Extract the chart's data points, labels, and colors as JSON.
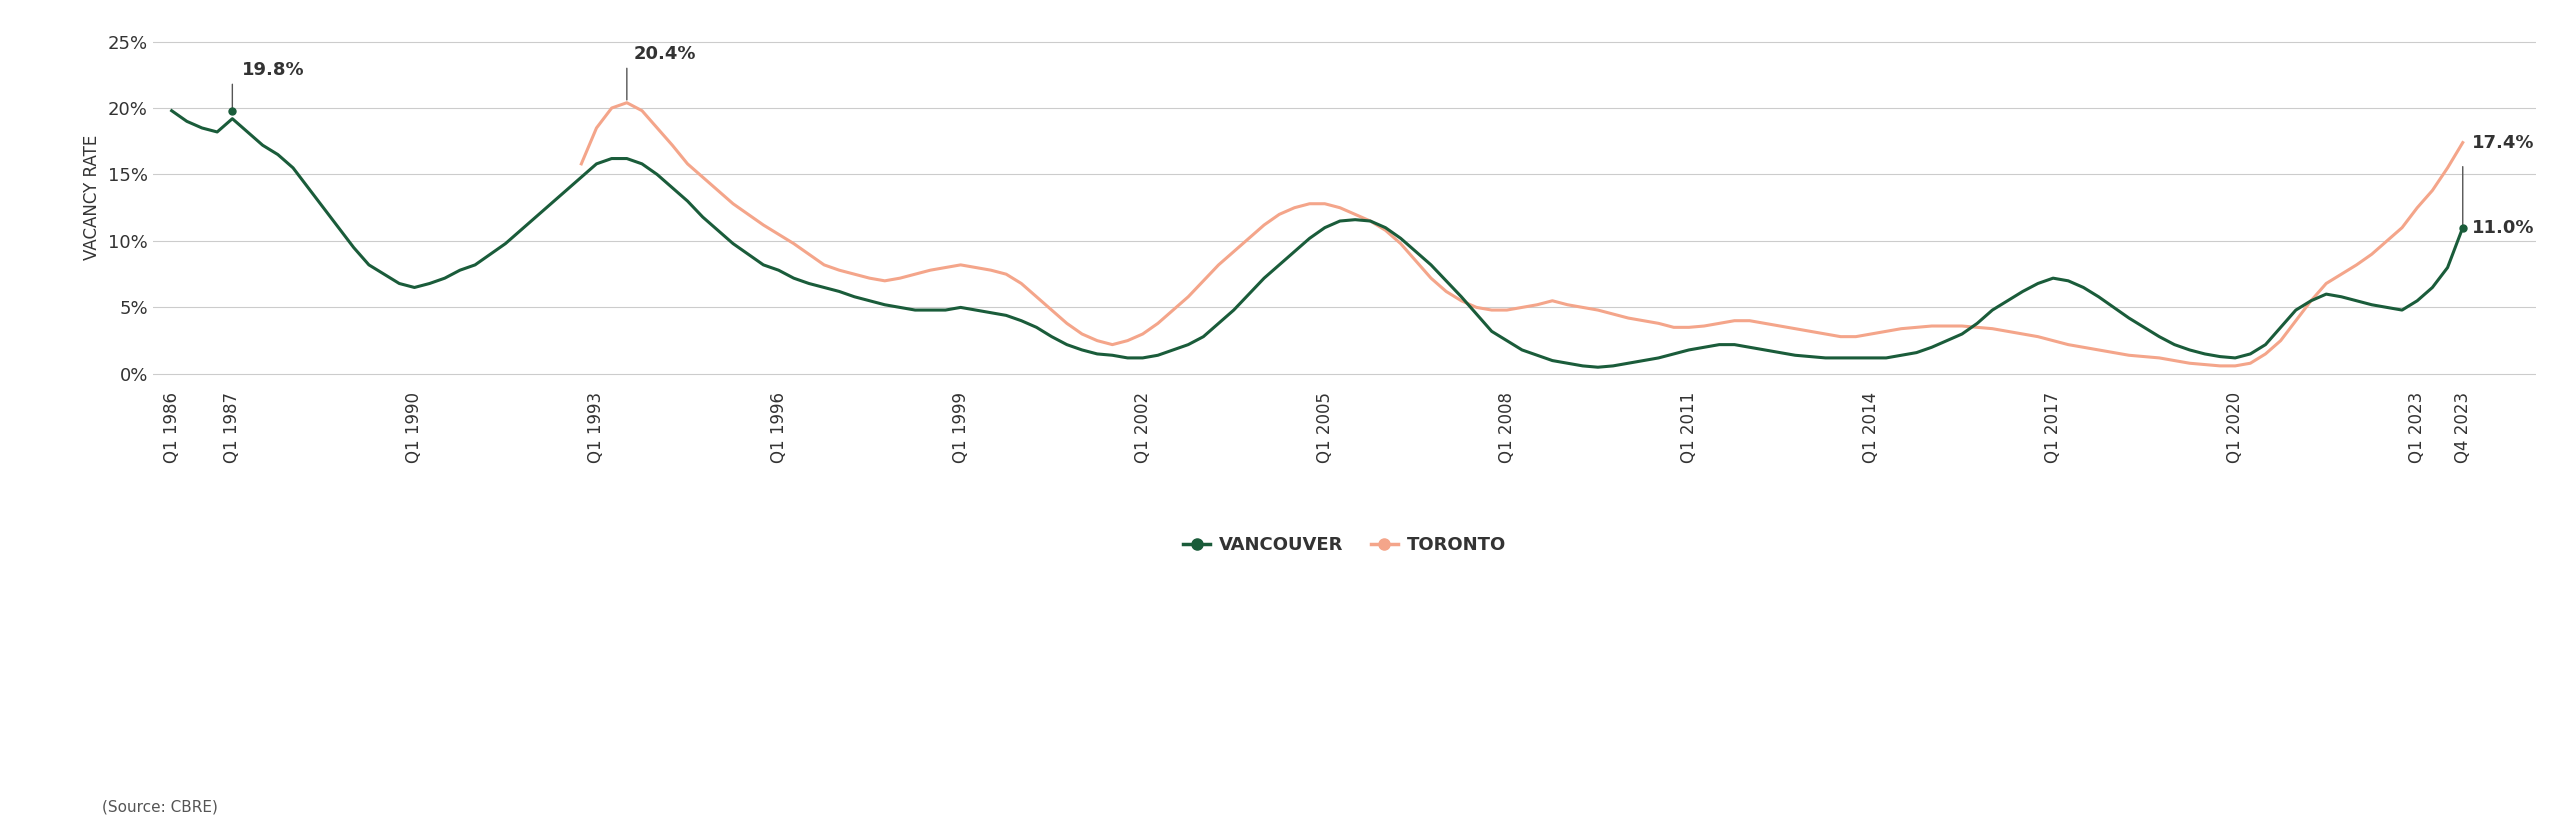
{
  "ylabel": "VACANCY RATE",
  "source": "(Source: CBRE)",
  "vancouver_color": "#1a5c3a",
  "toronto_color": "#f4a58a",
  "background_color": "#ffffff",
  "ylim": [
    -0.005,
    0.27
  ],
  "yticks": [
    0.0,
    0.05,
    0.1,
    0.15,
    0.2,
    0.25
  ],
  "ytick_labels": [
    "0%",
    "5%",
    "10%",
    "15%",
    "20%",
    "25%"
  ],
  "xtick_labels": [
    "Q1 1986",
    "Q1 1987",
    "Q1 1990",
    "Q1 1993",
    "Q1 1996",
    "Q1 1999",
    "Q1 2002",
    "Q1 2005",
    "Q1 2008",
    "Q1 2011",
    "Q1 2014",
    "Q1 2017",
    "Q1 2020",
    "Q1 2023",
    "Q4 2023"
  ],
  "vancouver_data": [
    [
      1986,
      1,
      0.198
    ],
    [
      1986,
      2,
      0.19
    ],
    [
      1986,
      3,
      0.185
    ],
    [
      1986,
      4,
      0.182
    ],
    [
      1987,
      1,
      0.192
    ],
    [
      1987,
      2,
      0.182
    ],
    [
      1987,
      3,
      0.172
    ],
    [
      1987,
      4,
      0.165
    ],
    [
      1988,
      1,
      0.155
    ],
    [
      1988,
      2,
      0.14
    ],
    [
      1988,
      3,
      0.125
    ],
    [
      1988,
      4,
      0.11
    ],
    [
      1989,
      1,
      0.095
    ],
    [
      1989,
      2,
      0.082
    ],
    [
      1989,
      3,
      0.075
    ],
    [
      1989,
      4,
      0.068
    ],
    [
      1990,
      1,
      0.065
    ],
    [
      1990,
      2,
      0.068
    ],
    [
      1990,
      3,
      0.072
    ],
    [
      1990,
      4,
      0.078
    ],
    [
      1991,
      1,
      0.082
    ],
    [
      1991,
      2,
      0.09
    ],
    [
      1991,
      3,
      0.098
    ],
    [
      1991,
      4,
      0.108
    ],
    [
      1992,
      1,
      0.118
    ],
    [
      1992,
      2,
      0.128
    ],
    [
      1992,
      3,
      0.138
    ],
    [
      1992,
      4,
      0.148
    ],
    [
      1993,
      1,
      0.158
    ],
    [
      1993,
      2,
      0.162
    ],
    [
      1993,
      3,
      0.162
    ],
    [
      1993,
      4,
      0.158
    ],
    [
      1994,
      1,
      0.15
    ],
    [
      1994,
      2,
      0.14
    ],
    [
      1994,
      3,
      0.13
    ],
    [
      1994,
      4,
      0.118
    ],
    [
      1995,
      1,
      0.108
    ],
    [
      1995,
      2,
      0.098
    ],
    [
      1995,
      3,
      0.09
    ],
    [
      1995,
      4,
      0.082
    ],
    [
      1996,
      1,
      0.078
    ],
    [
      1996,
      2,
      0.072
    ],
    [
      1996,
      3,
      0.068
    ],
    [
      1996,
      4,
      0.065
    ],
    [
      1997,
      1,
      0.062
    ],
    [
      1997,
      2,
      0.058
    ],
    [
      1997,
      3,
      0.055
    ],
    [
      1997,
      4,
      0.052
    ],
    [
      1998,
      1,
      0.05
    ],
    [
      1998,
      2,
      0.048
    ],
    [
      1998,
      3,
      0.048
    ],
    [
      1998,
      4,
      0.048
    ],
    [
      1999,
      1,
      0.05
    ],
    [
      1999,
      2,
      0.048
    ],
    [
      1999,
      3,
      0.046
    ],
    [
      1999,
      4,
      0.044
    ],
    [
      2000,
      1,
      0.04
    ],
    [
      2000,
      2,
      0.035
    ],
    [
      2000,
      3,
      0.028
    ],
    [
      2000,
      4,
      0.022
    ],
    [
      2001,
      1,
      0.018
    ],
    [
      2001,
      2,
      0.015
    ],
    [
      2001,
      3,
      0.014
    ],
    [
      2001,
      4,
      0.012
    ],
    [
      2002,
      1,
      0.012
    ],
    [
      2002,
      2,
      0.014
    ],
    [
      2002,
      3,
      0.018
    ],
    [
      2002,
      4,
      0.022
    ],
    [
      2003,
      1,
      0.028
    ],
    [
      2003,
      2,
      0.038
    ],
    [
      2003,
      3,
      0.048
    ],
    [
      2003,
      4,
      0.06
    ],
    [
      2004,
      1,
      0.072
    ],
    [
      2004,
      2,
      0.082
    ],
    [
      2004,
      3,
      0.092
    ],
    [
      2004,
      4,
      0.102
    ],
    [
      2005,
      1,
      0.11
    ],
    [
      2005,
      2,
      0.115
    ],
    [
      2005,
      3,
      0.116
    ],
    [
      2005,
      4,
      0.115
    ],
    [
      2006,
      1,
      0.11
    ],
    [
      2006,
      2,
      0.102
    ],
    [
      2006,
      3,
      0.092
    ],
    [
      2006,
      4,
      0.082
    ],
    [
      2007,
      1,
      0.07
    ],
    [
      2007,
      2,
      0.058
    ],
    [
      2007,
      3,
      0.045
    ],
    [
      2007,
      4,
      0.032
    ],
    [
      2008,
      1,
      0.025
    ],
    [
      2008,
      2,
      0.018
    ],
    [
      2008,
      3,
      0.014
    ],
    [
      2008,
      4,
      0.01
    ],
    [
      2009,
      1,
      0.008
    ],
    [
      2009,
      2,
      0.006
    ],
    [
      2009,
      3,
      0.005
    ],
    [
      2009,
      4,
      0.006
    ],
    [
      2010,
      1,
      0.008
    ],
    [
      2010,
      2,
      0.01
    ],
    [
      2010,
      3,
      0.012
    ],
    [
      2010,
      4,
      0.015
    ],
    [
      2011,
      1,
      0.018
    ],
    [
      2011,
      2,
      0.02
    ],
    [
      2011,
      3,
      0.022
    ],
    [
      2011,
      4,
      0.022
    ],
    [
      2012,
      1,
      0.02
    ],
    [
      2012,
      2,
      0.018
    ],
    [
      2012,
      3,
      0.016
    ],
    [
      2012,
      4,
      0.014
    ],
    [
      2013,
      1,
      0.013
    ],
    [
      2013,
      2,
      0.012
    ],
    [
      2013,
      3,
      0.012
    ],
    [
      2013,
      4,
      0.012
    ],
    [
      2014,
      1,
      0.012
    ],
    [
      2014,
      2,
      0.012
    ],
    [
      2014,
      3,
      0.014
    ],
    [
      2014,
      4,
      0.016
    ],
    [
      2015,
      1,
      0.02
    ],
    [
      2015,
      2,
      0.025
    ],
    [
      2015,
      3,
      0.03
    ],
    [
      2015,
      4,
      0.038
    ],
    [
      2016,
      1,
      0.048
    ],
    [
      2016,
      2,
      0.055
    ],
    [
      2016,
      3,
      0.062
    ],
    [
      2016,
      4,
      0.068
    ],
    [
      2017,
      1,
      0.072
    ],
    [
      2017,
      2,
      0.07
    ],
    [
      2017,
      3,
      0.065
    ],
    [
      2017,
      4,
      0.058
    ],
    [
      2018,
      1,
      0.05
    ],
    [
      2018,
      2,
      0.042
    ],
    [
      2018,
      3,
      0.035
    ],
    [
      2018,
      4,
      0.028
    ],
    [
      2019,
      1,
      0.022
    ],
    [
      2019,
      2,
      0.018
    ],
    [
      2019,
      3,
      0.015
    ],
    [
      2019,
      4,
      0.013
    ],
    [
      2020,
      1,
      0.012
    ],
    [
      2020,
      2,
      0.015
    ],
    [
      2020,
      3,
      0.022
    ],
    [
      2020,
      4,
      0.035
    ],
    [
      2021,
      1,
      0.048
    ],
    [
      2021,
      2,
      0.055
    ],
    [
      2021,
      3,
      0.06
    ],
    [
      2021,
      4,
      0.058
    ],
    [
      2022,
      1,
      0.055
    ],
    [
      2022,
      2,
      0.052
    ],
    [
      2022,
      3,
      0.05
    ],
    [
      2022,
      4,
      0.048
    ],
    [
      2023,
      1,
      0.055
    ],
    [
      2023,
      2,
      0.065
    ],
    [
      2023,
      3,
      0.08
    ],
    [
      2023,
      4,
      0.11
    ]
  ],
  "toronto_data": [
    [
      1992,
      4,
      0.158
    ],
    [
      1993,
      1,
      0.185
    ],
    [
      1993,
      2,
      0.2
    ],
    [
      1993,
      3,
      0.204
    ],
    [
      1993,
      4,
      0.198
    ],
    [
      1994,
      1,
      0.185
    ],
    [
      1994,
      2,
      0.172
    ],
    [
      1994,
      3,
      0.158
    ],
    [
      1994,
      4,
      0.148
    ],
    [
      1995,
      1,
      0.138
    ],
    [
      1995,
      2,
      0.128
    ],
    [
      1995,
      3,
      0.12
    ],
    [
      1995,
      4,
      0.112
    ],
    [
      1996,
      1,
      0.105
    ],
    [
      1996,
      2,
      0.098
    ],
    [
      1996,
      3,
      0.09
    ],
    [
      1996,
      4,
      0.082
    ],
    [
      1997,
      1,
      0.078
    ],
    [
      1997,
      2,
      0.075
    ],
    [
      1997,
      3,
      0.072
    ],
    [
      1997,
      4,
      0.07
    ],
    [
      1998,
      1,
      0.072
    ],
    [
      1998,
      2,
      0.075
    ],
    [
      1998,
      3,
      0.078
    ],
    [
      1998,
      4,
      0.08
    ],
    [
      1999,
      1,
      0.082
    ],
    [
      1999,
      2,
      0.08
    ],
    [
      1999,
      3,
      0.078
    ],
    [
      1999,
      4,
      0.075
    ],
    [
      2000,
      1,
      0.068
    ],
    [
      2000,
      2,
      0.058
    ],
    [
      2000,
      3,
      0.048
    ],
    [
      2000,
      4,
      0.038
    ],
    [
      2001,
      1,
      0.03
    ],
    [
      2001,
      2,
      0.025
    ],
    [
      2001,
      3,
      0.022
    ],
    [
      2001,
      4,
      0.025
    ],
    [
      2002,
      1,
      0.03
    ],
    [
      2002,
      2,
      0.038
    ],
    [
      2002,
      3,
      0.048
    ],
    [
      2002,
      4,
      0.058
    ],
    [
      2003,
      1,
      0.07
    ],
    [
      2003,
      2,
      0.082
    ],
    [
      2003,
      3,
      0.092
    ],
    [
      2003,
      4,
      0.102
    ],
    [
      2004,
      1,
      0.112
    ],
    [
      2004,
      2,
      0.12
    ],
    [
      2004,
      3,
      0.125
    ],
    [
      2004,
      4,
      0.128
    ],
    [
      2005,
      1,
      0.128
    ],
    [
      2005,
      2,
      0.125
    ],
    [
      2005,
      3,
      0.12
    ],
    [
      2005,
      4,
      0.115
    ],
    [
      2006,
      1,
      0.108
    ],
    [
      2006,
      2,
      0.098
    ],
    [
      2006,
      3,
      0.085
    ],
    [
      2006,
      4,
      0.072
    ],
    [
      2007,
      1,
      0.062
    ],
    [
      2007,
      2,
      0.055
    ],
    [
      2007,
      3,
      0.05
    ],
    [
      2007,
      4,
      0.048
    ],
    [
      2008,
      1,
      0.048
    ],
    [
      2008,
      2,
      0.05
    ],
    [
      2008,
      3,
      0.052
    ],
    [
      2008,
      4,
      0.055
    ],
    [
      2009,
      1,
      0.052
    ],
    [
      2009,
      2,
      0.05
    ],
    [
      2009,
      3,
      0.048
    ],
    [
      2009,
      4,
      0.045
    ],
    [
      2010,
      1,
      0.042
    ],
    [
      2010,
      2,
      0.04
    ],
    [
      2010,
      3,
      0.038
    ],
    [
      2010,
      4,
      0.035
    ],
    [
      2011,
      1,
      0.035
    ],
    [
      2011,
      2,
      0.036
    ],
    [
      2011,
      3,
      0.038
    ],
    [
      2011,
      4,
      0.04
    ],
    [
      2012,
      1,
      0.04
    ],
    [
      2012,
      2,
      0.038
    ],
    [
      2012,
      3,
      0.036
    ],
    [
      2012,
      4,
      0.034
    ],
    [
      2013,
      1,
      0.032
    ],
    [
      2013,
      2,
      0.03
    ],
    [
      2013,
      3,
      0.028
    ],
    [
      2013,
      4,
      0.028
    ],
    [
      2014,
      1,
      0.03
    ],
    [
      2014,
      2,
      0.032
    ],
    [
      2014,
      3,
      0.034
    ],
    [
      2014,
      4,
      0.035
    ],
    [
      2015,
      1,
      0.036
    ],
    [
      2015,
      2,
      0.036
    ],
    [
      2015,
      3,
      0.036
    ],
    [
      2015,
      4,
      0.035
    ],
    [
      2016,
      1,
      0.034
    ],
    [
      2016,
      2,
      0.032
    ],
    [
      2016,
      3,
      0.03
    ],
    [
      2016,
      4,
      0.028
    ],
    [
      2017,
      1,
      0.025
    ],
    [
      2017,
      2,
      0.022
    ],
    [
      2017,
      3,
      0.02
    ],
    [
      2017,
      4,
      0.018
    ],
    [
      2018,
      1,
      0.016
    ],
    [
      2018,
      2,
      0.014
    ],
    [
      2018,
      3,
      0.013
    ],
    [
      2018,
      4,
      0.012
    ],
    [
      2019,
      1,
      0.01
    ],
    [
      2019,
      2,
      0.008
    ],
    [
      2019,
      3,
      0.007
    ],
    [
      2019,
      4,
      0.006
    ],
    [
      2020,
      1,
      0.006
    ],
    [
      2020,
      2,
      0.008
    ],
    [
      2020,
      3,
      0.015
    ],
    [
      2020,
      4,
      0.025
    ],
    [
      2021,
      1,
      0.04
    ],
    [
      2021,
      2,
      0.055
    ],
    [
      2021,
      3,
      0.068
    ],
    [
      2021,
      4,
      0.075
    ],
    [
      2022,
      1,
      0.082
    ],
    [
      2022,
      2,
      0.09
    ],
    [
      2022,
      3,
      0.1
    ],
    [
      2022,
      4,
      0.11
    ],
    [
      2023,
      1,
      0.125
    ],
    [
      2023,
      2,
      0.138
    ],
    [
      2023,
      3,
      0.155
    ],
    [
      2023,
      4,
      0.174
    ]
  ]
}
